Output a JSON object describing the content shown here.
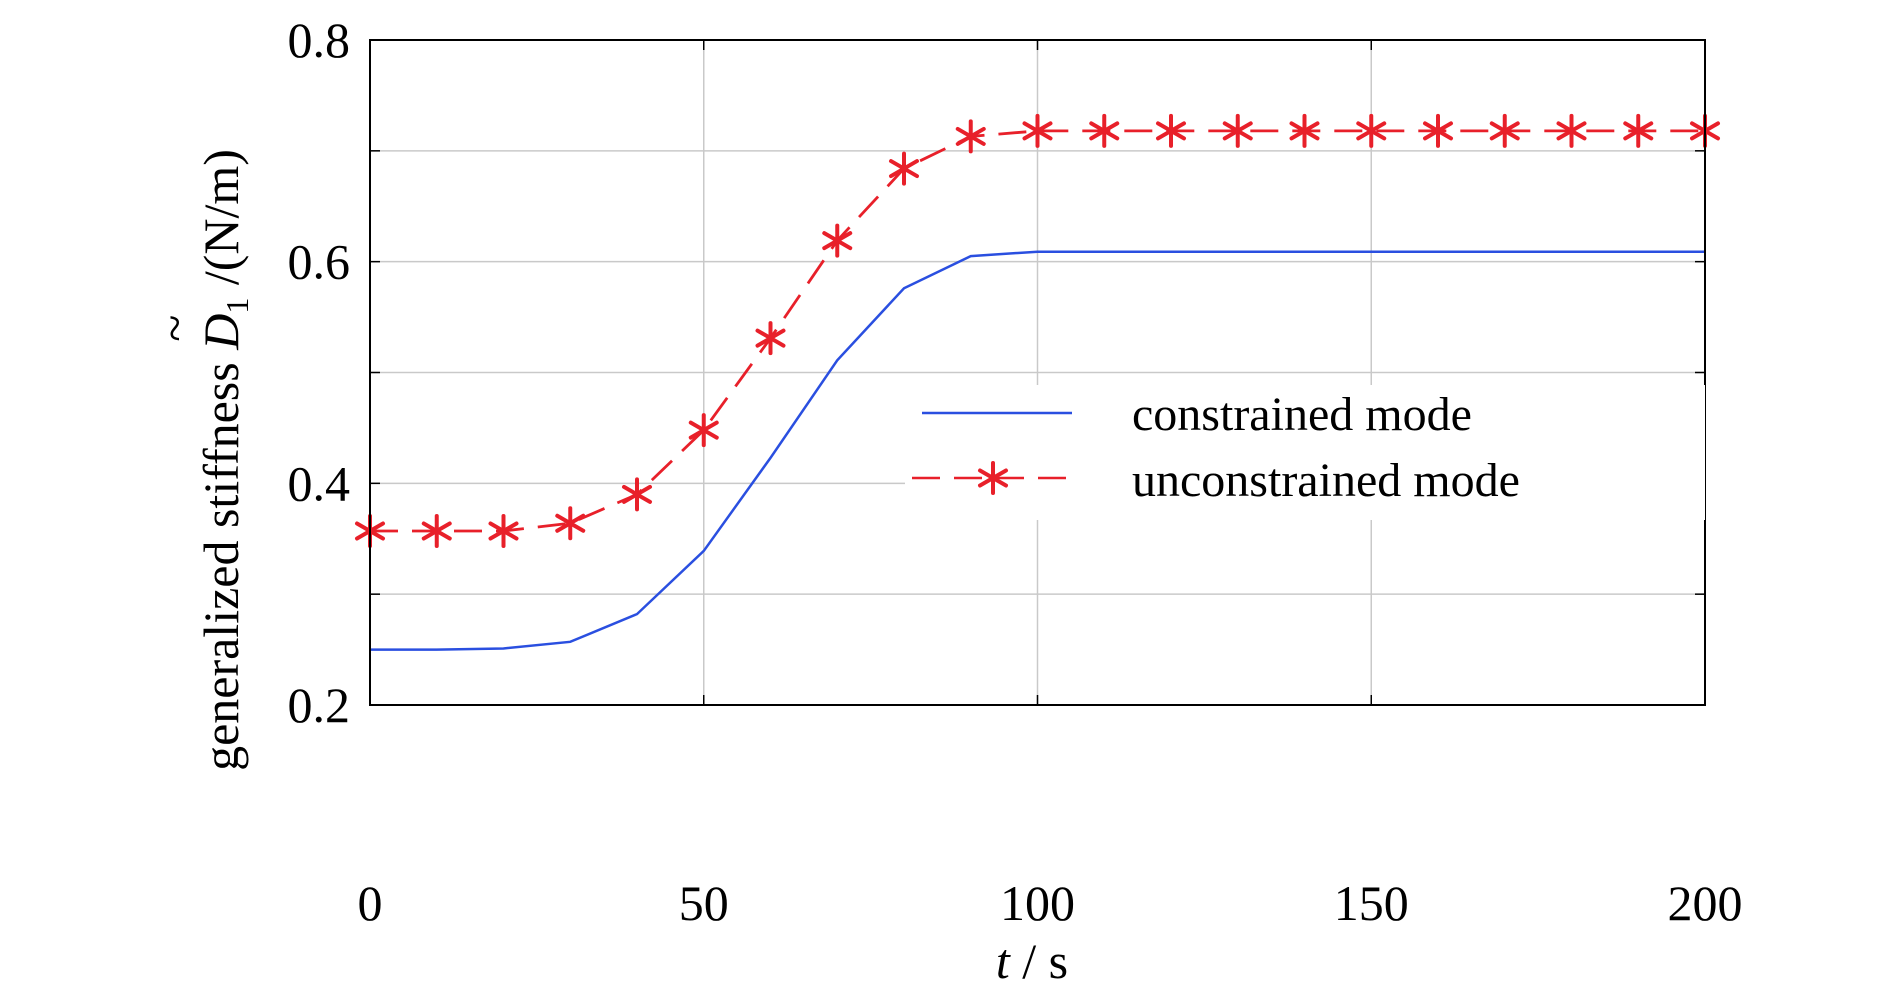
{
  "chart_data": {
    "type": "line",
    "x": [
      0,
      10,
      20,
      30,
      40,
      50,
      60,
      70,
      80,
      90,
      100,
      110,
      120,
      130,
      140,
      150,
      160,
      170,
      180,
      190,
      200
    ],
    "series": [
      {
        "name": "constrained mode",
        "color": "#2a4fe0",
        "marker": "none",
        "line_style": "solid",
        "values": [
          0.25,
          0.25,
          0.251,
          0.257,
          0.282,
          0.339,
          0.423,
          0.511,
          0.576,
          0.605,
          0.609,
          0.609,
          0.609,
          0.609,
          0.609,
          0.609,
          0.609,
          0.609,
          0.609,
          0.609,
          0.609
        ]
      },
      {
        "name": "unconstrained mode",
        "color": "#e8202a",
        "marker": "asterisk",
        "line_style": "dashed",
        "values": [
          0.357,
          0.357,
          0.357,
          0.364,
          0.39,
          0.448,
          0.531,
          0.619,
          0.684,
          0.713,
          0.718,
          0.718,
          0.718,
          0.718,
          0.718,
          0.718,
          0.718,
          0.718,
          0.718,
          0.718,
          0.718
        ]
      }
    ],
    "xlabel": {
      "italic": "t",
      "rest": " / s"
    },
    "ylabel": {
      "prefix": "generalized stiffness ",
      "symbol": "D",
      "tilde": "~",
      "subscript": "1",
      "unit": " /(N/m)"
    },
    "xlim": [
      0,
      200
    ],
    "ylim": [
      0.2,
      0.8
    ],
    "xticks": [
      0,
      50,
      100,
      150,
      200
    ],
    "yticks": [
      0.2,
      0.4,
      0.6,
      0.8
    ],
    "x_tick_labels": [
      "0",
      "50",
      "100",
      "150",
      "200"
    ],
    "y_tick_labels": [
      "0.2",
      "0.4",
      "0.6",
      "0.8"
    ],
    "y_minor_grid": [
      0.3,
      0.5,
      0.7
    ],
    "grid": true,
    "legend_position": "center-right"
  }
}
